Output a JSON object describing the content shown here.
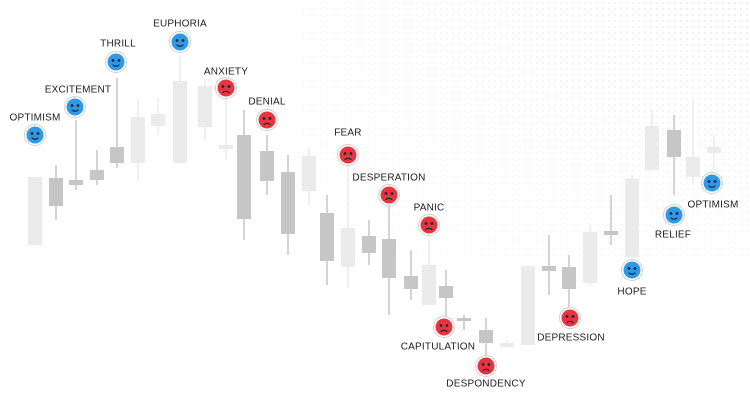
{
  "nodes": [
    {
      "label": "OPTIMISM"
    },
    {
      "label": "EXCITEMENT"
    },
    {
      "label": "THRILL"
    },
    {
      "label": "EUPHORIA"
    },
    {
      "label": "ANXIETY"
    },
    {
      "label": "DENIAL"
    },
    {
      "label": "FEAR"
    },
    {
      "label": "DESPERATION"
    },
    {
      "label": "PANIC"
    },
    {
      "label": "CAPITULATION"
    },
    {
      "label": "DESPONDENCY"
    },
    {
      "label": "DEPRESSION"
    },
    {
      "label": "HOPE"
    },
    {
      "label": "RELIEF"
    },
    {
      "label": "OPTIMISM"
    }
  ]
}
